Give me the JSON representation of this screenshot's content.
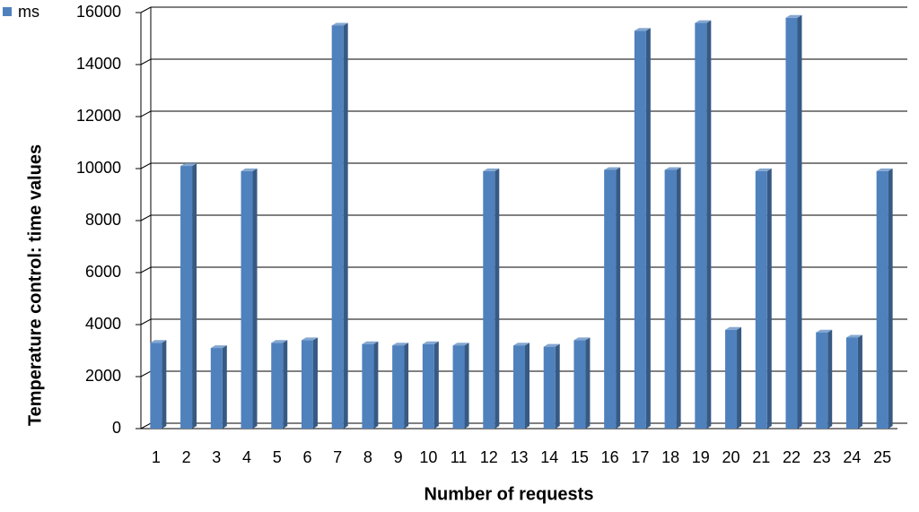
{
  "chart_data": {
    "type": "bar3d",
    "y_label": "Temperature control: time values",
    "x_label": "Number of requests",
    "categories": [
      "1",
      "2",
      "3",
      "4",
      "5",
      "6",
      "7",
      "8",
      "9",
      "10",
      "11",
      "12",
      "13",
      "14",
      "15",
      "16",
      "17",
      "18",
      "19",
      "20",
      "21",
      "22",
      "23",
      "24",
      "25"
    ],
    "series": [
      {
        "name": "ms",
        "color": "#4f81bd",
        "values": [
          3300,
          10100,
          3100,
          9900,
          3300,
          3400,
          15500,
          3250,
          3200,
          3250,
          3200,
          9900,
          3200,
          3150,
          3400,
          9950,
          15300,
          9950,
          15600,
          3800,
          9900,
          15800,
          3700,
          3500,
          9900
        ]
      }
    ],
    "ylim": [
      0,
      16000
    ],
    "yticks": [
      0,
      2000,
      4000,
      6000,
      8000,
      10000,
      12000,
      14000,
      16000
    ],
    "grid": true,
    "legend": "top-left"
  }
}
